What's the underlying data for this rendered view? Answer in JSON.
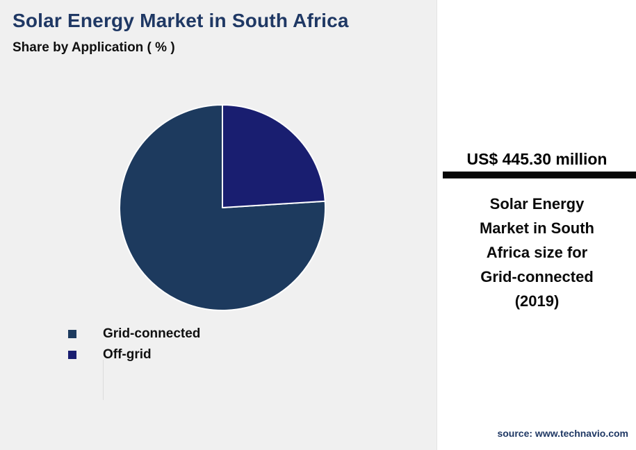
{
  "page": {
    "title": "Solar Energy Market in South Africa",
    "subtitle": "Share by Application ( % )"
  },
  "chart_data": {
    "type": "pie",
    "title": "Share by Application ( % )",
    "unit": "%",
    "slices": [
      {
        "label": "Grid-connected",
        "value": 76,
        "color": "#1d3a5e"
      },
      {
        "label": "Off-grid",
        "value": 24,
        "color": "#191e70"
      }
    ],
    "start_angle_deg": 86.4,
    "direction": "clockwise",
    "legend_position": "bottom-left"
  },
  "legend": {
    "items": [
      {
        "label": "Grid-connected",
        "color": "#1d3a5e"
      },
      {
        "label": "Off-grid",
        "color": "#191e70"
      }
    ]
  },
  "panel": {
    "headline": "US$ 445.30 million",
    "description": "Solar Energy Market in South Africa size for Grid-connected (2019)",
    "source": "source: www.technavio.com"
  },
  "colors": {
    "title_text": "#1f3864",
    "left_background": "#f0f0f0",
    "panel_background": "#ffffff",
    "divider_bar": "#070707",
    "slice_stroke": "#ffffff"
  }
}
